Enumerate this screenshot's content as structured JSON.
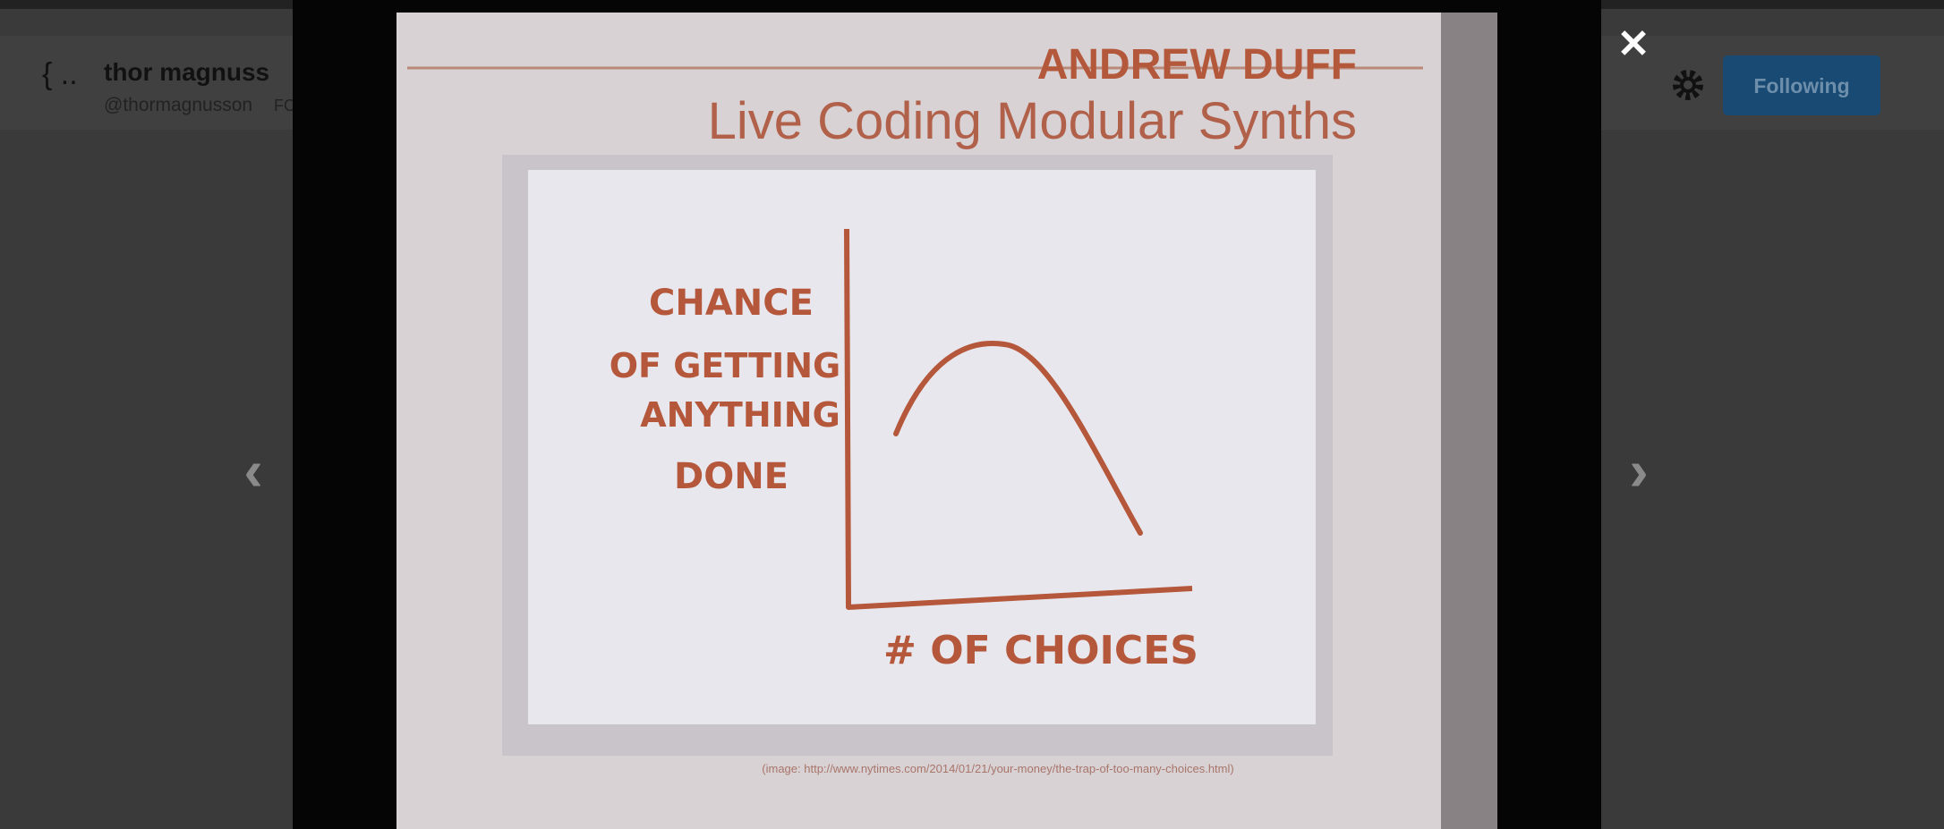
{
  "header": {
    "avatar_text": "{ ..",
    "name": "thor magnuss",
    "handle": "@thormagnusson",
    "handle_suffix": "FO",
    "button": "Following"
  },
  "slide": {
    "speaker": "ANDREW DUFF",
    "title": "Live Coding Modular Synths",
    "y_axis_label": [
      "CHANCE",
      "OF GETTING",
      "ANYTHING",
      "DONE"
    ],
    "x_axis_label": "# OF CHOICES",
    "caption": "(image: http://www.nytimes.com/2014/01/21/your-money/the-trap-of-too-many-choices.html)"
  },
  "controls": {
    "close": "✕",
    "prev": "‹",
    "next": "›"
  }
}
